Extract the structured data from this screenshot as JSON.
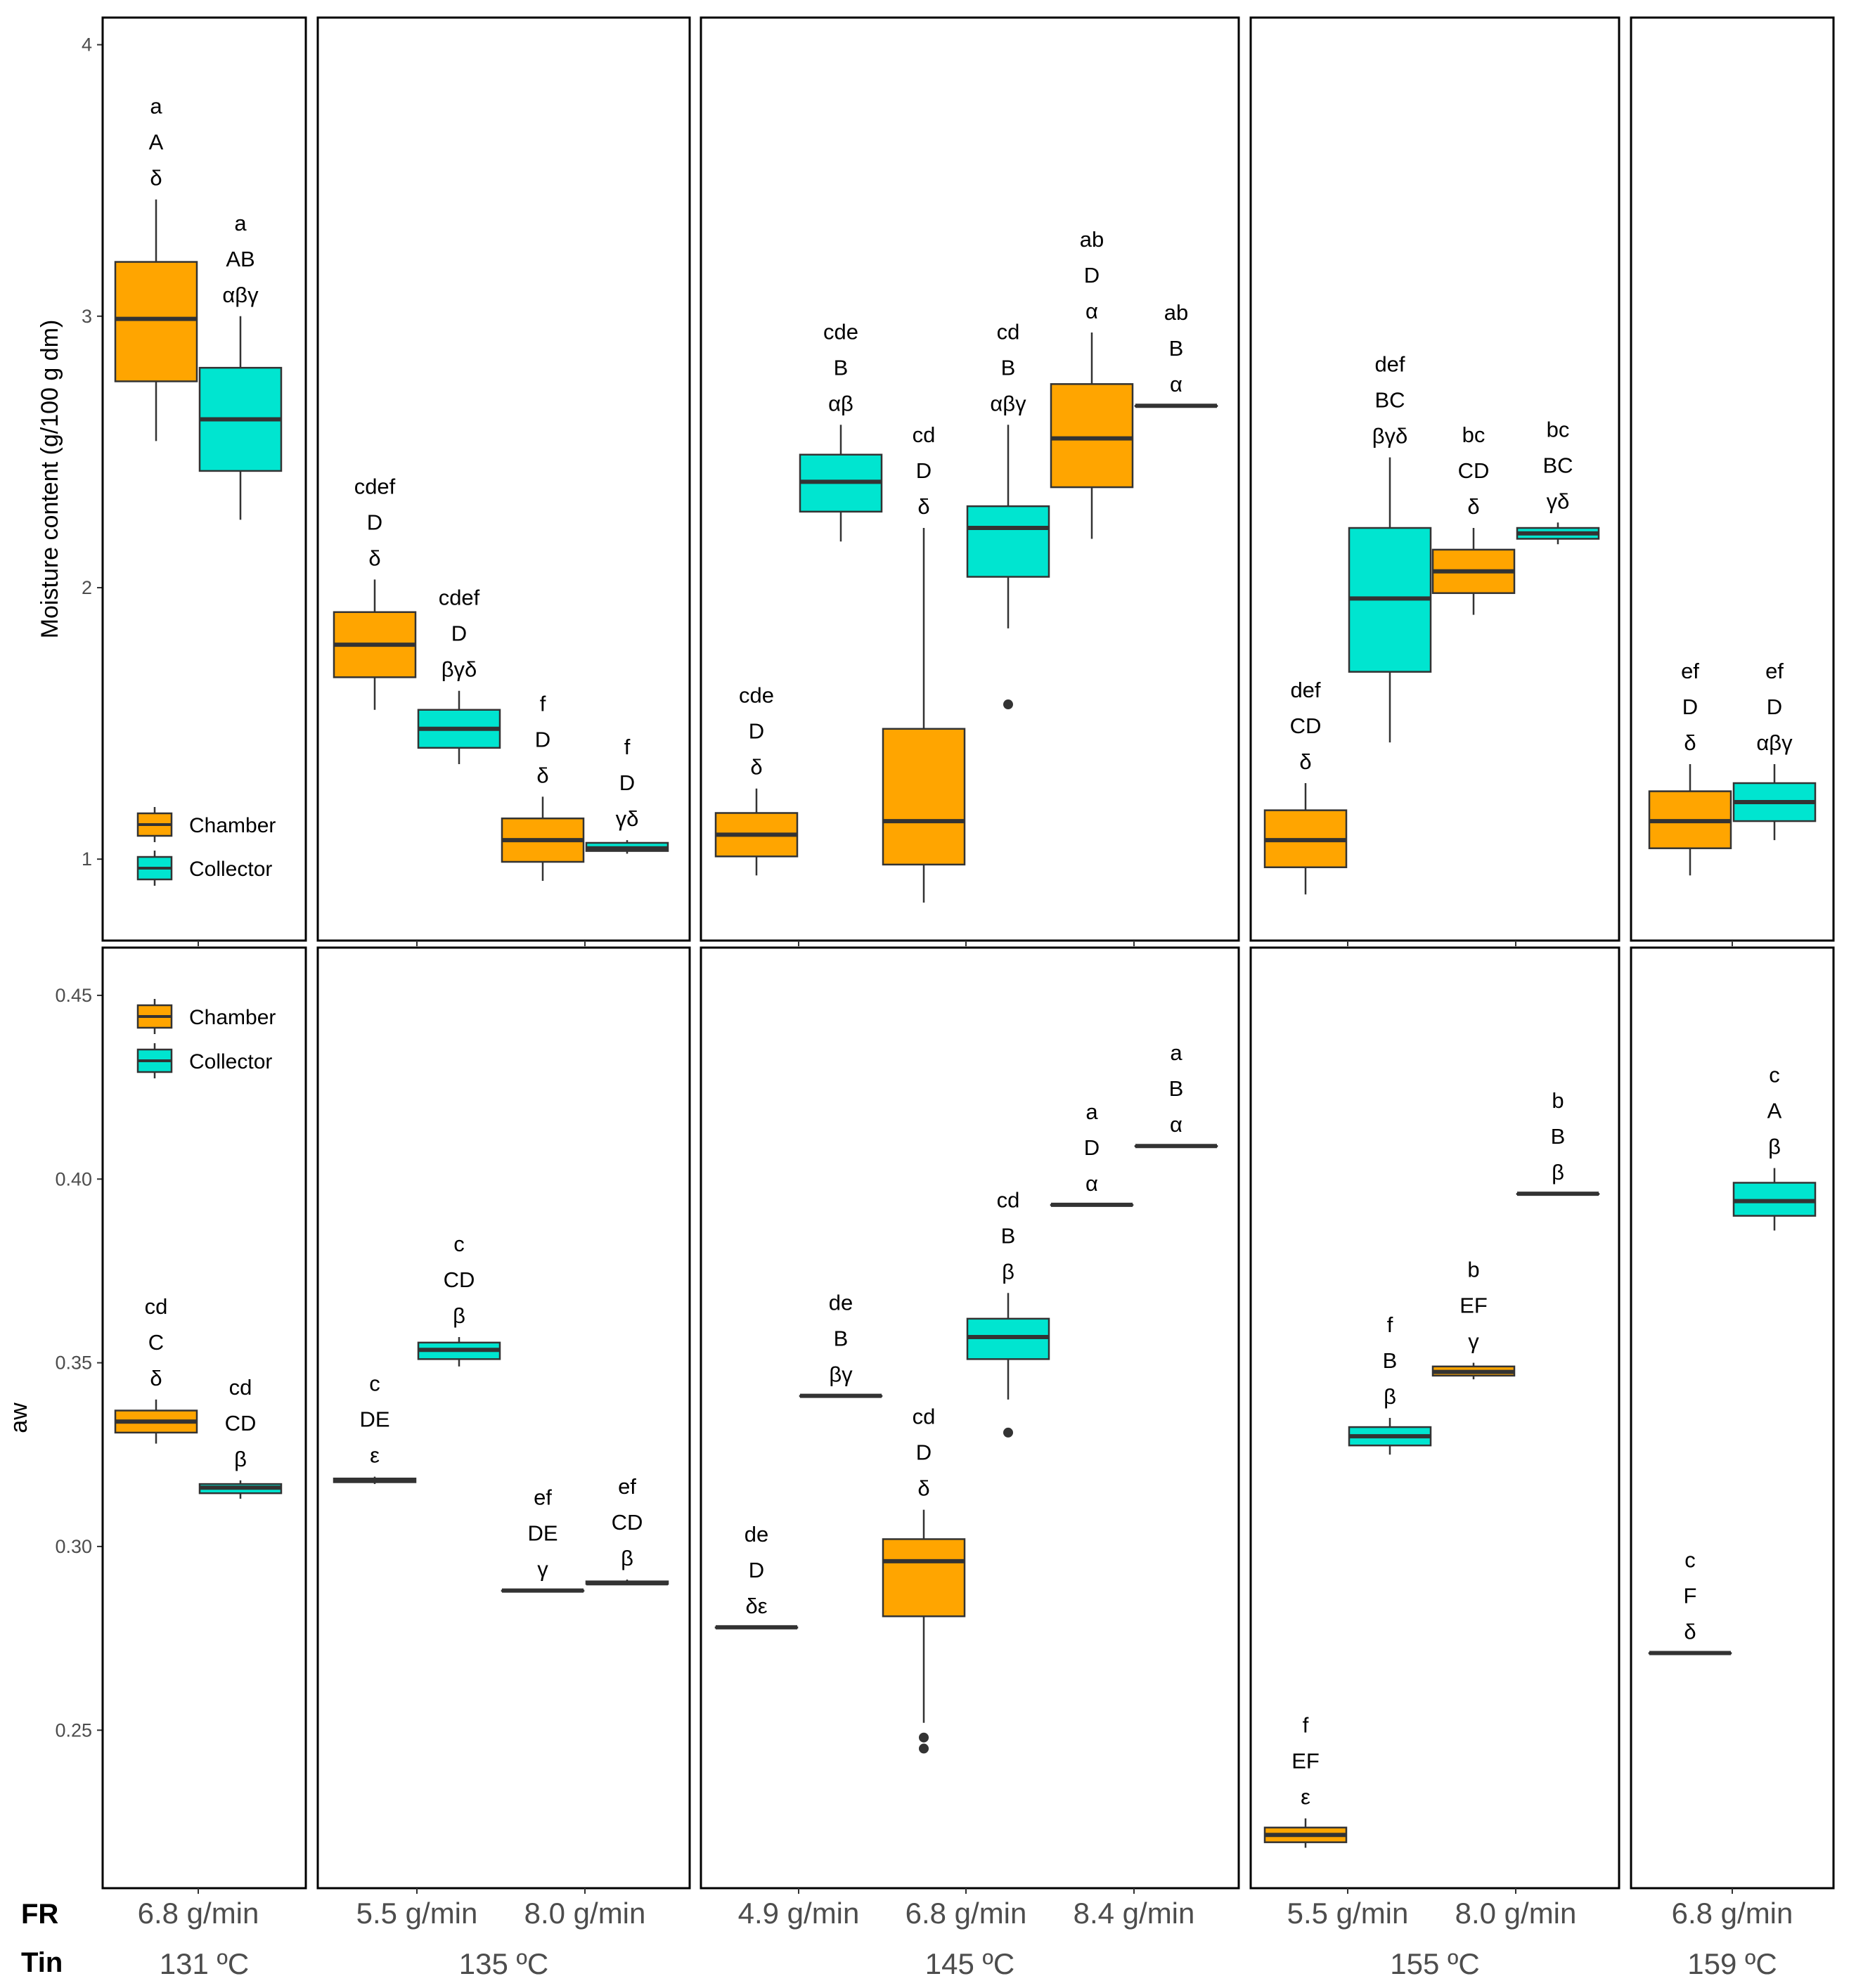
{
  "chart_data": {
    "type": "boxplot",
    "facet_row_label": "FR",
    "facet_group_label": "Tin",
    "legend": {
      "entries": [
        "Chamber",
        "Collector"
      ],
      "placement": "top-left"
    },
    "colors": {
      "Chamber": "#FFA500",
      "Collector": "#00E5D0",
      "median": "#333333",
      "frame": "#000000"
    },
    "groups": [
      {
        "tin": "131 ºC",
        "fr": [
          "6.8 g/min"
        ]
      },
      {
        "tin": "135 ºC",
        "fr": [
          "5.5 g/min",
          "8.0 g/min"
        ]
      },
      {
        "tin": "145 ºC",
        "fr": [
          "4.9 g/min",
          "6.8 g/min",
          "8.4 g/min"
        ]
      },
      {
        "tin": "155 ºC",
        "fr": [
          "5.5 g/min",
          "8.0 g/min"
        ]
      },
      {
        "tin": "159 ºC",
        "fr": [
          "6.8 g/min"
        ]
      }
    ],
    "rows": [
      {
        "key": "moisture",
        "ylabel": "Moisture content (g/100 g dm)",
        "ylim": [
          0.7,
          4.1
        ],
        "yticks": [
          "1",
          "2",
          "3",
          "4"
        ],
        "boxes": [
          {
            "group": 0,
            "cat": 0,
            "series": "Chamber",
            "q": [
              2.54,
              2.76,
              2.99,
              3.2,
              3.43
            ],
            "out": [],
            "letters": [
              "a",
              "A",
              "δ"
            ]
          },
          {
            "group": 0,
            "cat": 0,
            "series": "Collector",
            "q": [
              2.25,
              2.43,
              2.62,
              2.81,
              3.0
            ],
            "out": [],
            "letters": [
              "a",
              "AB",
              "αβγ"
            ]
          },
          {
            "group": 1,
            "cat": 0,
            "series": "Chamber",
            "q": [
              1.55,
              1.67,
              1.79,
              1.91,
              2.03
            ],
            "out": [],
            "letters": [
              "cdef",
              "D",
              "δ"
            ]
          },
          {
            "group": 1,
            "cat": 0,
            "series": "Collector",
            "q": [
              1.35,
              1.41,
              1.48,
              1.55,
              1.62
            ],
            "out": [],
            "letters": [
              "cdef",
              "D",
              "βγδ"
            ]
          },
          {
            "group": 1,
            "cat": 1,
            "series": "Chamber",
            "q": [
              0.92,
              0.99,
              1.07,
              1.15,
              1.23
            ],
            "out": [],
            "letters": [
              "f",
              "D",
              "δ"
            ]
          },
          {
            "group": 1,
            "cat": 1,
            "series": "Collector",
            "q": [
              1.02,
              1.03,
              1.04,
              1.06,
              1.07
            ],
            "out": [],
            "letters": [
              "f",
              "D",
              "γδ"
            ]
          },
          {
            "group": 2,
            "cat": 0,
            "series": "Chamber",
            "q": [
              0.94,
              1.01,
              1.09,
              1.17,
              1.26
            ],
            "out": [],
            "letters": [
              "cde",
              "D",
              "δ"
            ]
          },
          {
            "group": 2,
            "cat": 0,
            "series": "Collector",
            "q": [
              2.17,
              2.28,
              2.39,
              2.49,
              2.6
            ],
            "out": [],
            "letters": [
              "cde",
              "B",
              "αβ"
            ]
          },
          {
            "group": 2,
            "cat": 1,
            "series": "Chamber",
            "q": [
              0.84,
              0.98,
              1.14,
              1.48,
              2.22
            ],
            "out": [],
            "letters": [
              "cd",
              "D",
              "δ"
            ]
          },
          {
            "group": 2,
            "cat": 1,
            "series": "Collector",
            "q": [
              1.85,
              2.04,
              2.22,
              2.3,
              2.6
            ],
            "out": [
              1.57
            ],
            "letters": [
              "cd",
              "B",
              "αβγ"
            ]
          },
          {
            "group": 2,
            "cat": 2,
            "series": "Chamber",
            "q": [
              2.18,
              2.37,
              2.55,
              2.75,
              2.94
            ],
            "out": [],
            "letters": [
              "ab",
              "D",
              "α"
            ]
          },
          {
            "group": 2,
            "cat": 2,
            "series": "Collector",
            "q": [
              2.67,
              2.67,
              2.67,
              2.67,
              2.67
            ],
            "out": [],
            "letters": [
              "ab",
              "B",
              "α"
            ]
          },
          {
            "group": 3,
            "cat": 0,
            "series": "Chamber",
            "q": [
              0.87,
              0.97,
              1.07,
              1.18,
              1.28
            ],
            "out": [],
            "letters": [
              "def",
              "CD",
              "δ"
            ]
          },
          {
            "group": 3,
            "cat": 0,
            "series": "Collector",
            "q": [
              1.43,
              1.69,
              1.96,
              2.22,
              2.48
            ],
            "out": [],
            "letters": [
              "def",
              "BC",
              "βγδ"
            ]
          },
          {
            "group": 3,
            "cat": 1,
            "series": "Chamber",
            "q": [
              1.9,
              1.98,
              2.06,
              2.14,
              2.22
            ],
            "out": [],
            "letters": [
              "bc",
              "CD",
              "δ"
            ]
          },
          {
            "group": 3,
            "cat": 1,
            "series": "Collector",
            "q": [
              2.16,
              2.18,
              2.2,
              2.22,
              2.24
            ],
            "out": [],
            "letters": [
              "bc",
              "BC",
              "γδ"
            ]
          },
          {
            "group": 4,
            "cat": 0,
            "series": "Chamber",
            "q": [
              0.94,
              1.04,
              1.14,
              1.25,
              1.35
            ],
            "out": [],
            "letters": [
              "ef",
              "D",
              "δ"
            ]
          },
          {
            "group": 4,
            "cat": 0,
            "series": "Collector",
            "q": [
              1.07,
              1.14,
              1.21,
              1.28,
              1.35
            ],
            "out": [],
            "letters": [
              "ef",
              "D",
              "αβγ"
            ]
          }
        ]
      },
      {
        "key": "aw",
        "ylabel": "aw",
        "ylim": [
          0.207,
          0.463
        ],
        "yticks": [
          "0.25",
          "0.30",
          "0.35",
          "0.40",
          "0.45"
        ],
        "boxes": [
          {
            "group": 0,
            "cat": 0,
            "series": "Chamber",
            "q": [
              0.328,
              0.331,
              0.334,
              0.337,
              0.34
            ],
            "out": [],
            "letters": [
              "cd",
              "C",
              "δ"
            ]
          },
          {
            "group": 0,
            "cat": 0,
            "series": "Collector",
            "q": [
              0.313,
              0.3145,
              0.316,
              0.317,
              0.318
            ],
            "out": [],
            "letters": [
              "cd",
              "CD",
              "β"
            ]
          },
          {
            "group": 1,
            "cat": 0,
            "series": "Chamber",
            "q": [
              0.317,
              0.3175,
              0.318,
              0.3185,
              0.319
            ],
            "out": [],
            "letters": [
              "c",
              "DE",
              "ε"
            ]
          },
          {
            "group": 1,
            "cat": 0,
            "series": "Collector",
            "q": [
              0.349,
              0.351,
              0.3535,
              0.3555,
              0.357
            ],
            "out": [],
            "letters": [
              "c",
              "CD",
              "β"
            ]
          },
          {
            "group": 1,
            "cat": 1,
            "series": "Chamber",
            "q": [
              0.288,
              0.288,
              0.288,
              0.288,
              0.288
            ],
            "out": [],
            "letters": [
              "ef",
              "DE",
              "γ"
            ]
          },
          {
            "group": 1,
            "cat": 1,
            "series": "Collector",
            "q": [
              0.2895,
              0.2898,
              0.29,
              0.2905,
              0.291
            ],
            "out": [],
            "letters": [
              "ef",
              "CD",
              "β"
            ]
          },
          {
            "group": 2,
            "cat": 0,
            "series": "Chamber",
            "q": [
              0.278,
              0.278,
              0.278,
              0.278,
              0.278
            ],
            "out": [],
            "letters": [
              "de",
              "D",
              "δε"
            ]
          },
          {
            "group": 2,
            "cat": 0,
            "series": "Collector",
            "q": [
              0.341,
              0.341,
              0.341,
              0.341,
              0.341
            ],
            "out": [],
            "letters": [
              "de",
              "B",
              "βγ"
            ]
          },
          {
            "group": 2,
            "cat": 1,
            "series": "Chamber",
            "q": [
              0.252,
              0.281,
              0.296,
              0.302,
              0.31
            ],
            "out": [
              0.248,
              0.245
            ],
            "letters": [
              "cd",
              "D",
              "δ"
            ]
          },
          {
            "group": 2,
            "cat": 1,
            "series": "Collector",
            "q": [
              0.34,
              0.351,
              0.357,
              0.362,
              0.369
            ],
            "out": [
              0.331
            ],
            "letters": [
              "cd",
              "B",
              "β"
            ]
          },
          {
            "group": 2,
            "cat": 2,
            "series": "Chamber",
            "q": [
              0.393,
              0.393,
              0.393,
              0.393,
              0.393
            ],
            "out": [],
            "letters": [
              "a",
              "D",
              "α"
            ]
          },
          {
            "group": 2,
            "cat": 2,
            "series": "Collector",
            "q": [
              0.409,
              0.409,
              0.409,
              0.409,
              0.409
            ],
            "out": [],
            "letters": [
              "a",
              "B",
              "α"
            ]
          },
          {
            "group": 3,
            "cat": 0,
            "series": "Chamber",
            "q": [
              0.218,
              0.2195,
              0.2215,
              0.2235,
              0.226
            ],
            "out": [],
            "letters": [
              "f",
              "EF",
              "ε"
            ]
          },
          {
            "group": 3,
            "cat": 0,
            "series": "Collector",
            "q": [
              0.325,
              0.3275,
              0.33,
              0.3325,
              0.335
            ],
            "out": [],
            "letters": [
              "f",
              "B",
              "β"
            ]
          },
          {
            "group": 3,
            "cat": 1,
            "series": "Chamber",
            "q": [
              0.3455,
              0.3465,
              0.3475,
              0.349,
              0.35
            ],
            "out": [],
            "letters": [
              "b",
              "EF",
              "γ"
            ]
          },
          {
            "group": 3,
            "cat": 1,
            "series": "Collector",
            "q": [
              0.396,
              0.396,
              0.396,
              0.396,
              0.396
            ],
            "out": [],
            "letters": [
              "b",
              "B",
              "β"
            ]
          },
          {
            "group": 4,
            "cat": 0,
            "series": "Chamber",
            "q": [
              0.271,
              0.271,
              0.271,
              0.271,
              0.271
            ],
            "out": [],
            "letters": [
              "c",
              "F",
              "δ"
            ]
          },
          {
            "group": 4,
            "cat": 0,
            "series": "Collector",
            "q": [
              0.386,
              0.39,
              0.394,
              0.399,
              0.403
            ],
            "out": [],
            "letters": [
              "c",
              "A",
              "β"
            ]
          }
        ]
      }
    ]
  }
}
